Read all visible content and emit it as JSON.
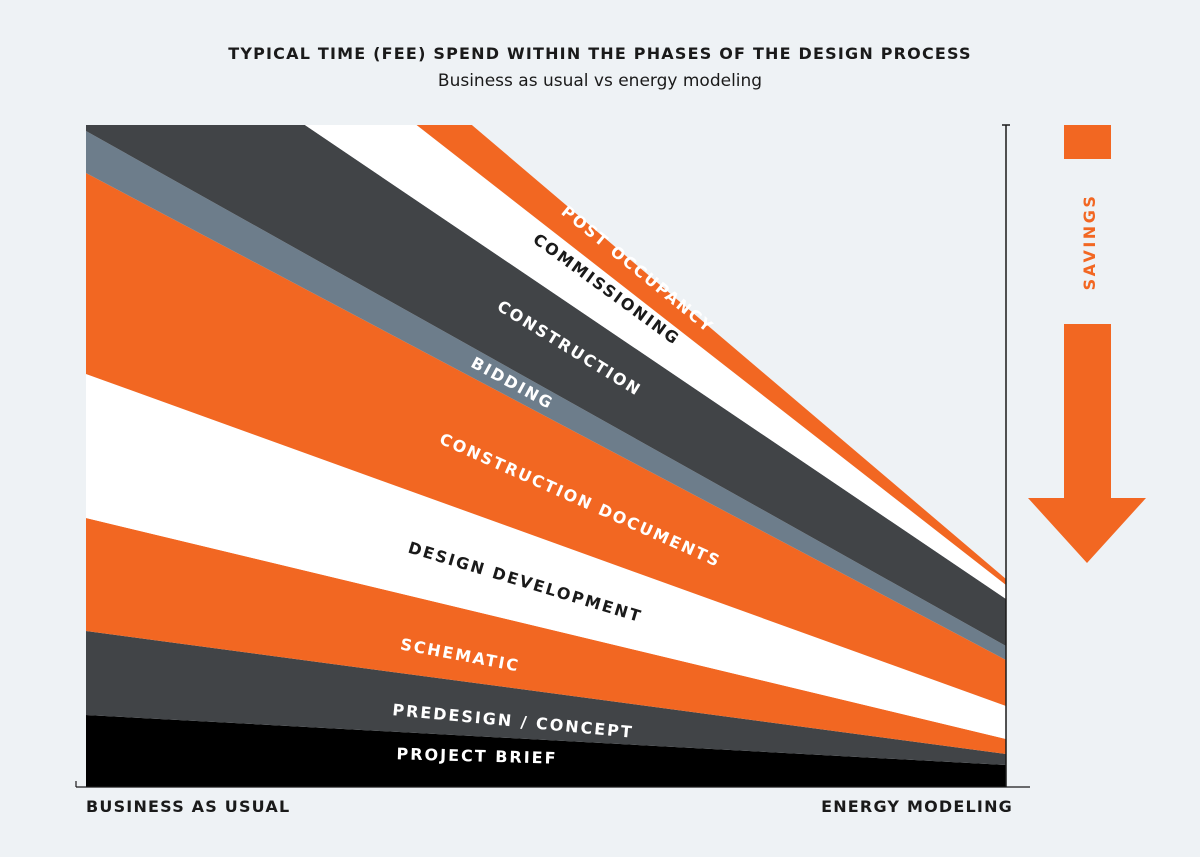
{
  "chart_data": {
    "type": "area",
    "title": "TYPICAL TIME (FEE) SPEND WITHIN THE PHASES OF THE DESIGN PROCESS",
    "subtitle": "Business as usual vs energy modeling",
    "categories": [
      "BUSINESS AS USUAL",
      "ENERGY MODELING"
    ],
    "series": [
      {
        "name": "PROJECT BRIEF",
        "values": [
          72,
          22
        ],
        "color": "#000000",
        "text_color": "#ffffff"
      },
      {
        "name": "PREDESIGN / CONCEPT",
        "values": [
          84,
          11
        ],
        "color": "#414447",
        "text_color": "#ffffff"
      },
      {
        "name": "SCHEMATIC",
        "values": [
          113,
          15
        ],
        "color": "#f26722",
        "text_color": "#ffffff"
      },
      {
        "name": "DESIGN DEVELOPMENT",
        "values": [
          144,
          33
        ],
        "color": "#ffffff",
        "text_color": "#1a1a1a"
      },
      {
        "name": "CONSTRUCTION DOCUMENTS",
        "values": [
          201,
          46
        ],
        "color": "#f26722",
        "text_color": "#ffffff"
      },
      {
        "name": "BIDDING",
        "values": [
          42,
          14
        ],
        "color": "#6d7d8b",
        "text_color": "#ffffff"
      },
      {
        "name": "CONSTRUCTION",
        "values": [
          154,
          47
        ],
        "color": "#414447",
        "text_color": "#ffffff"
      },
      {
        "name": "COMMISSIONING",
        "values": [
          110,
          14
        ],
        "color": "#ffffff",
        "text_color": "#1a1a1a"
      },
      {
        "name": "POST OCCUPANCY",
        "values": [
          70,
          6
        ],
        "color": "#f26722",
        "text_color": "#ffffff"
      }
    ],
    "xlabel": "",
    "ylabel": "",
    "grid": false,
    "legend": "none"
  },
  "savings": {
    "label": "SAVINGS",
    "color": "#f26722"
  }
}
